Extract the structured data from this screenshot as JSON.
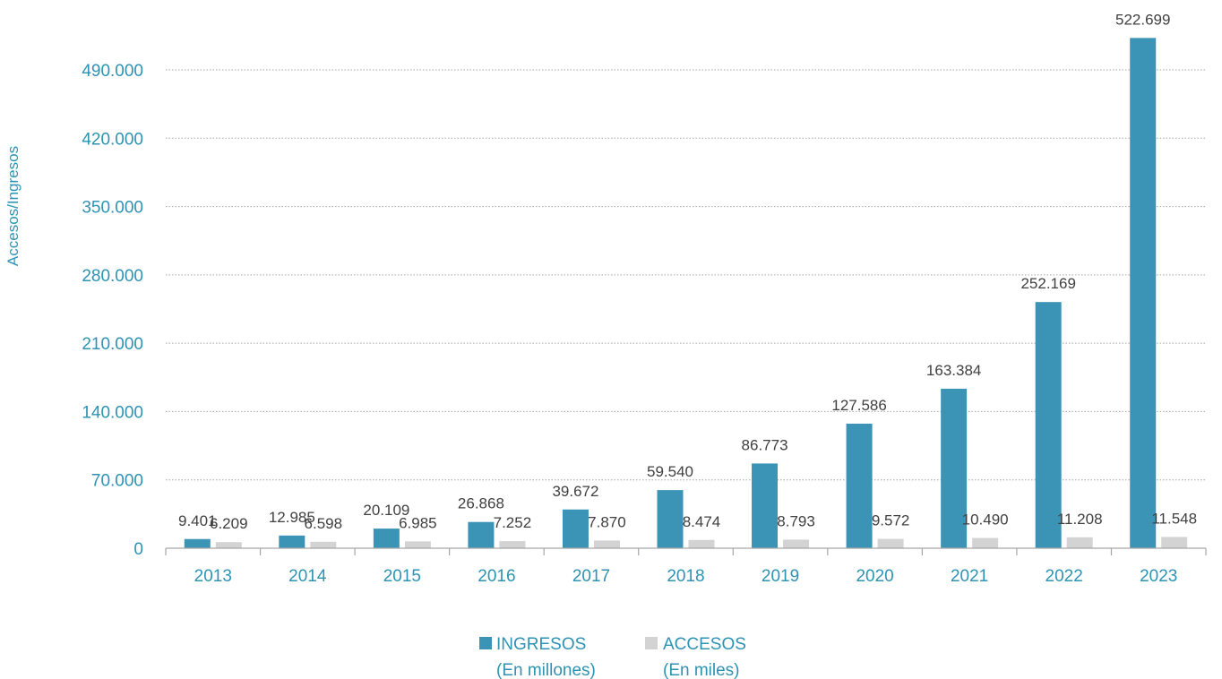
{
  "colors": {
    "ingresos": "#3b93b5",
    "accesos": "#d3d3d3",
    "axis_text": "#2e93b3",
    "label_text": "#404040",
    "grid": "#a6a6a6",
    "axis_line": "#a6a6a6"
  },
  "chart_data": {
    "type": "bar",
    "title": "",
    "xlabel": "",
    "ylabel": "Accesos/Ingresos",
    "categories": [
      "2013",
      "2014",
      "2015",
      "2016",
      "2017",
      "2018",
      "2019",
      "2020",
      "2021",
      "2022",
      "2023"
    ],
    "ylim": [
      0,
      490000
    ],
    "yticks": [
      0,
      70000,
      140000,
      210000,
      280000,
      350000,
      420000,
      490000
    ],
    "ytick_labels": [
      "0",
      "70.000",
      "140.000",
      "210.000",
      "280.000",
      "350.000",
      "420.000",
      "490.000"
    ],
    "grid": "horizontal dotted",
    "legend_position": "bottom",
    "series": [
      {
        "name": "INGRESOS",
        "name_line2": "(En millones)",
        "color": "#3b93b5",
        "values": [
          9401,
          12985,
          20109,
          26868,
          39672,
          59540,
          86773,
          127586,
          163384,
          252169,
          522699
        ],
        "labels": [
          "9.401",
          "12.985",
          "20.109",
          "26.868",
          "39.672",
          "59.540",
          "86.773",
          "127.586",
          "163.384",
          "252.169",
          "522.699"
        ]
      },
      {
        "name": "ACCESOS",
        "name_line2": "(En miles)",
        "color": "#d3d3d3",
        "values": [
          6209,
          6598,
          6985,
          7252,
          7870,
          8474,
          8793,
          9572,
          10490,
          11208,
          11548
        ],
        "labels": [
          "6.209",
          "6.598",
          "6.985",
          "7.252",
          "7.870",
          "8.474",
          "8.793",
          "9.572",
          "10.490",
          "11.208",
          "11.548"
        ]
      }
    ]
  }
}
